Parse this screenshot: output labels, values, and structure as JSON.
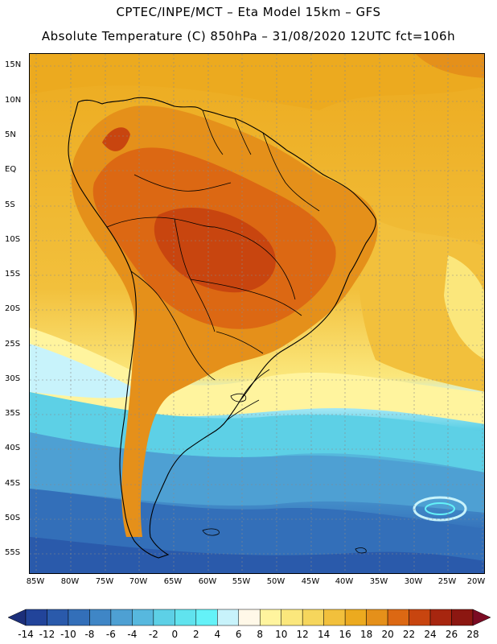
{
  "header": {
    "line1": "CPTEC/INPE/MCT –  Eta Model 15km – GFS",
    "line2": "Absolute Temperature (C) 850hPa – 31/08/2020 12UTC fct=106h"
  },
  "map": {
    "variable": "Absolute Temperature (C) 850hPa",
    "lat_labels": [
      "15N",
      "10N",
      "5N",
      "EQ",
      "5S",
      "10S",
      "15S",
      "20S",
      "25S",
      "30S",
      "35S",
      "40S",
      "45S",
      "50S",
      "55S"
    ],
    "lon_labels": [
      "85W",
      "80W",
      "75W",
      "70W",
      "65W",
      "60W",
      "55W",
      "50W",
      "45W",
      "40W",
      "35W",
      "30W",
      "25W",
      "20W"
    ]
  },
  "colorbar": {
    "labels": [
      "-14",
      "-12",
      "-10",
      "-8",
      "-6",
      "-4",
      "-2",
      "0",
      "2",
      "4",
      "6",
      "8",
      "10",
      "12",
      "14",
      "16",
      "18",
      "20",
      "22",
      "24",
      "26",
      "28"
    ],
    "under_color": "#1c2f7a",
    "over_color": "#7b0b23",
    "colors": [
      "#22449a",
      "#2a5aab",
      "#336fb9",
      "#3f86c6",
      "#4ea0d3",
      "#57b8de",
      "#5dd0e6",
      "#60e3ee",
      "#64f2f8",
      "#c8f3fb",
      "#fff8e8",
      "#fff49e",
      "#fbe77c",
      "#f6d65c",
      "#f2c03c",
      "#ecaa1f",
      "#e5901a",
      "#dc6813",
      "#c8450f",
      "#a7260f",
      "#8c1711"
    ]
  }
}
